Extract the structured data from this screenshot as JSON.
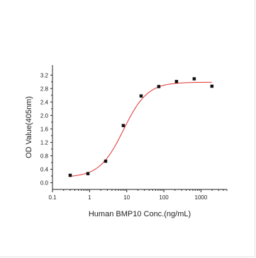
{
  "chart_data": {
    "type": "scatter",
    "xlabel": "Human BMP10 Conc.(ng/mL)",
    "ylabel": "OD Value(405nm)",
    "x_scale": "log",
    "xlim": [
      0.1,
      5000
    ],
    "ylim": [
      -0.2,
      3.5
    ],
    "x_ticks": [
      0.1,
      1,
      10,
      100,
      1000
    ],
    "x_tick_labels": [
      "0.1",
      "1",
      "10",
      "100",
      "1000"
    ],
    "y_ticks": [
      0.0,
      0.4,
      0.8,
      1.2,
      1.6,
      2.0,
      2.4,
      2.8,
      3.2
    ],
    "y_tick_labels": [
      "0.0",
      "0.4",
      "0.8",
      "1.2",
      "1.6",
      "2.0",
      "2.4",
      "2.8",
      "3.2"
    ],
    "grid": false,
    "series": [
      {
        "points": [
          {
            "x": 0.3,
            "y": 0.22
          },
          {
            "x": 0.9,
            "y": 0.27
          },
          {
            "x": 2.7,
            "y": 0.64
          },
          {
            "x": 8.1,
            "y": 1.7
          },
          {
            "x": 24.4,
            "y": 2.58
          },
          {
            "x": 73,
            "y": 2.86
          },
          {
            "x": 219,
            "y": 3.01
          },
          {
            "x": 657,
            "y": 3.09
          },
          {
            "x": 1970,
            "y": 2.87
          }
        ],
        "marker_color": "#111111"
      }
    ],
    "fit_curve": {
      "model": "4PL",
      "bottom": 0.16,
      "top": 2.99,
      "ec50": 8.2,
      "hill": 1.35,
      "color": "#e0302e"
    }
  }
}
